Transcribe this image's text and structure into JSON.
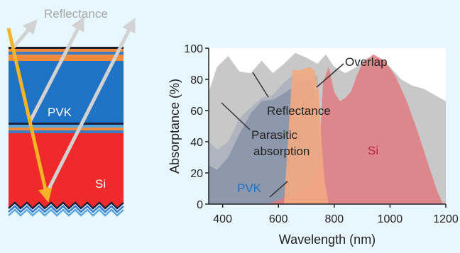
{
  "stack_diagram": {
    "reflectance_label": "Reflectance",
    "pvk_label": "PVK",
    "si_label": "Si"
  },
  "chart_data": {
    "type": "area",
    "xlabel": "Wavelength (nm)",
    "ylabel": "Absorptance (%)",
    "xlim": [
      350,
      1200
    ],
    "ylim": [
      0,
      100
    ],
    "xticks": [
      400,
      600,
      800,
      1000,
      1200
    ],
    "yticks": [
      0,
      20,
      40,
      60,
      80,
      100
    ],
    "annotations": {
      "overlap": "Overlap",
      "reflectance": "Reflectance",
      "parasitic_line1": "Parasitic",
      "parasitic_line2": "absorption",
      "si": "Si",
      "pvk": "PVK"
    },
    "series": [
      {
        "name": "Reflectance",
        "color": "#c8c8c8",
        "x": [
          350,
          380,
          420,
          460,
          500,
          540,
          580,
          620,
          660,
          700,
          740,
          770,
          800,
          840,
          880,
          920,
          960,
          1000,
          1040,
          1080,
          1120,
          1160,
          1200
        ],
        "values": [
          72,
          88,
          95,
          85,
          84,
          92,
          84,
          90,
          97,
          94,
          90,
          96,
          88,
          84,
          88,
          94,
          93,
          88,
          80,
          76,
          74,
          70,
          66
        ]
      },
      {
        "name": "PVK",
        "color": "#7d8aa2",
        "x": [
          350,
          380,
          420,
          460,
          500,
          540,
          580,
          620,
          660,
          700,
          720,
          740,
          750,
          760,
          770,
          790
        ],
        "values": [
          25,
          22,
          30,
          45,
          58,
          66,
          67,
          71,
          76,
          80,
          78,
          55,
          30,
          10,
          2,
          0
        ]
      },
      {
        "name": "Parasitic absorption",
        "color": "#9aa4b7",
        "x": [
          350,
          380,
          420,
          460,
          500,
          540,
          580,
          620,
          660,
          700,
          740,
          770
        ],
        "values": [
          40,
          35,
          40,
          55,
          62,
          68,
          70,
          78,
          84,
          84,
          82,
          0
        ]
      },
      {
        "name": "Overlap",
        "color": "#f2aa82",
        "x": [
          620,
          650,
          680,
          710,
          730,
          745,
          755,
          765,
          780
        ],
        "values": [
          0,
          86,
          86,
          88,
          86,
          72,
          40,
          15,
          0
        ]
      },
      {
        "name": "Si",
        "color": "#e07a80",
        "x": [
          560,
          620,
          680,
          720,
          745,
          760,
          780,
          800,
          820,
          840,
          860,
          880,
          900,
          940,
          980,
          1020,
          1060,
          1100,
          1140,
          1170,
          1190,
          1200
        ],
        "values": [
          0,
          4,
          8,
          15,
          25,
          78,
          88,
          72,
          66,
          68,
          72,
          82,
          90,
          96,
          92,
          82,
          66,
          46,
          24,
          8,
          0,
          0
        ]
      }
    ]
  }
}
